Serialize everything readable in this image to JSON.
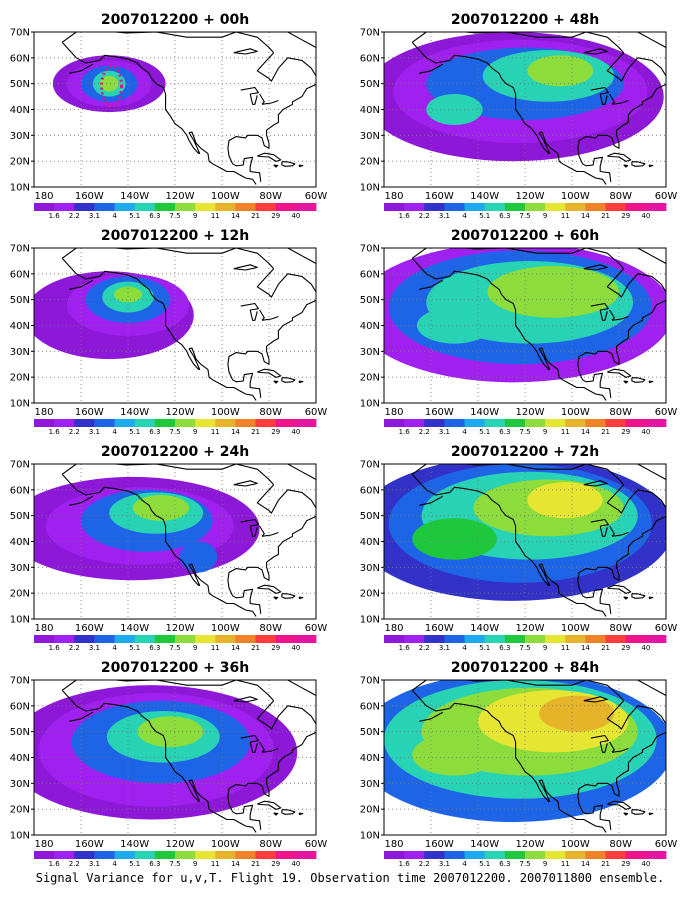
{
  "figure": {
    "caption": "Signal Variance for u,v,T. Flight 19. Observation time 2007012200. 2007011800 ensemble.",
    "lon_ticks": [
      "180",
      "160W",
      "140W",
      "120W",
      "100W",
      "80W",
      "60W"
    ],
    "lat_ticks": [
      "10N",
      "20N",
      "30N",
      "40N",
      "50N",
      "60N",
      "70N"
    ],
    "colorbar": {
      "labels": [
        "1.6",
        "2.2",
        "3.1",
        "4",
        "5.1",
        "6.3",
        "7.5",
        "9",
        "11",
        "14",
        "21",
        "29",
        "40"
      ],
      "colors": [
        "#8e18d8",
        "#a020f0",
        "#3232c8",
        "#1e64e6",
        "#1eaaf0",
        "#28d2b4",
        "#1ec83c",
        "#8cdc3c",
        "#e6e632",
        "#e6b428",
        "#f08228",
        "#fa3c3c",
        "#f0148c",
        "#e6149e"
      ]
    },
    "panels": [
      {
        "id": "p00",
        "title": "2007012200 + 00h",
        "lead_hours": 0
      },
      {
        "id": "p48",
        "title": "2007012200 + 48h",
        "lead_hours": 48
      },
      {
        "id": "p12",
        "title": "2007012200 + 12h",
        "lead_hours": 12
      },
      {
        "id": "p60",
        "title": "2007012200 + 60h",
        "lead_hours": 60
      },
      {
        "id": "p24",
        "title": "2007012200 + 24h",
        "lead_hours": 24
      },
      {
        "id": "p72",
        "title": "2007012200 + 72h",
        "lead_hours": 72
      },
      {
        "id": "p36",
        "title": "2007012200 + 36h",
        "lead_hours": 36
      },
      {
        "id": "p84",
        "title": "2007012200 + 84h",
        "lead_hours": 84
      }
    ]
  }
}
